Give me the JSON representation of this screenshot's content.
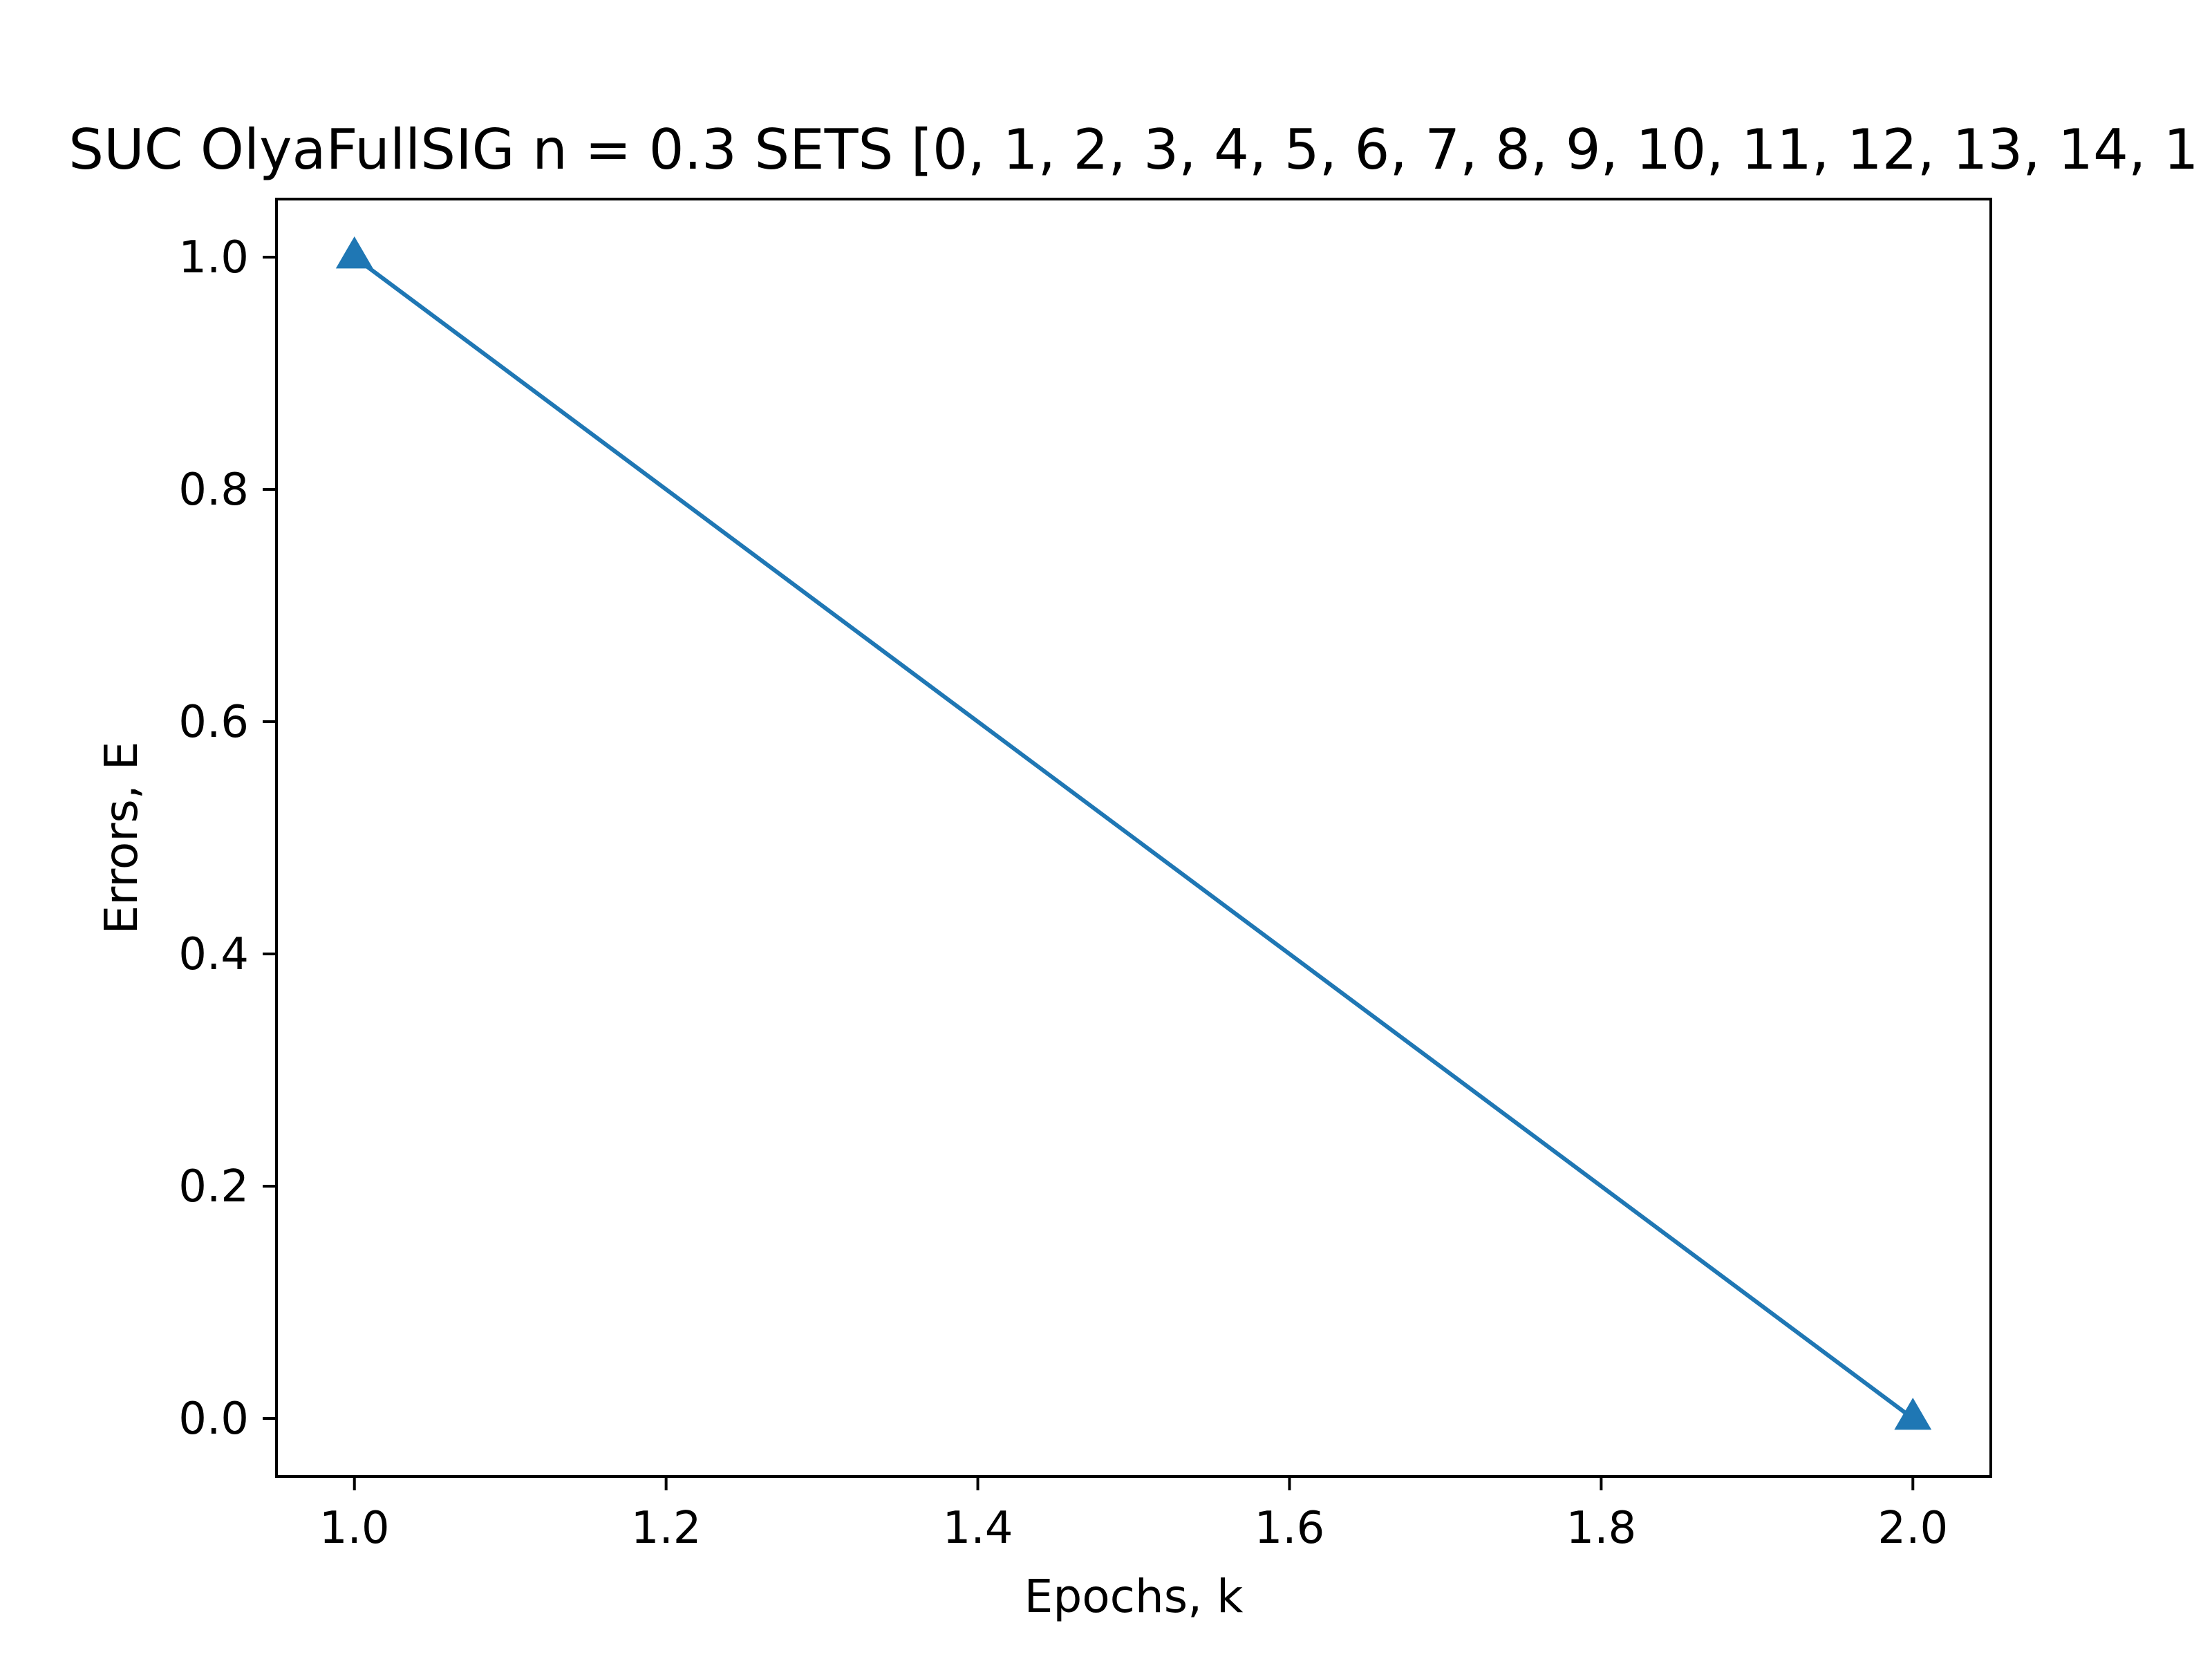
{
  "chart_data": {
    "type": "line",
    "title": "SUC OlyaFullSIG n = 0.3 SETS [0, 1, 2, 3, 4, 5, 6, 7, 8, 9, 10, 11, 12, 13, 14, 1",
    "xlabel": "Epochs, k",
    "ylabel": "Errors, E",
    "xlim": [
      0.95,
      2.05
    ],
    "ylim": [
      -0.05,
      1.05
    ],
    "x_ticks": [
      "1.0",
      "1.2",
      "1.4",
      "1.6",
      "1.8",
      "2.0"
    ],
    "y_ticks": [
      "0.0",
      "0.2",
      "0.4",
      "0.6",
      "0.8",
      "1.0"
    ],
    "grid": false,
    "legend": "none",
    "series": [
      {
        "x": [
          1,
          2
        ],
        "y": [
          1.0,
          0.0
        ],
        "marker": "triangle-up",
        "color": "#1f77b4"
      }
    ]
  }
}
